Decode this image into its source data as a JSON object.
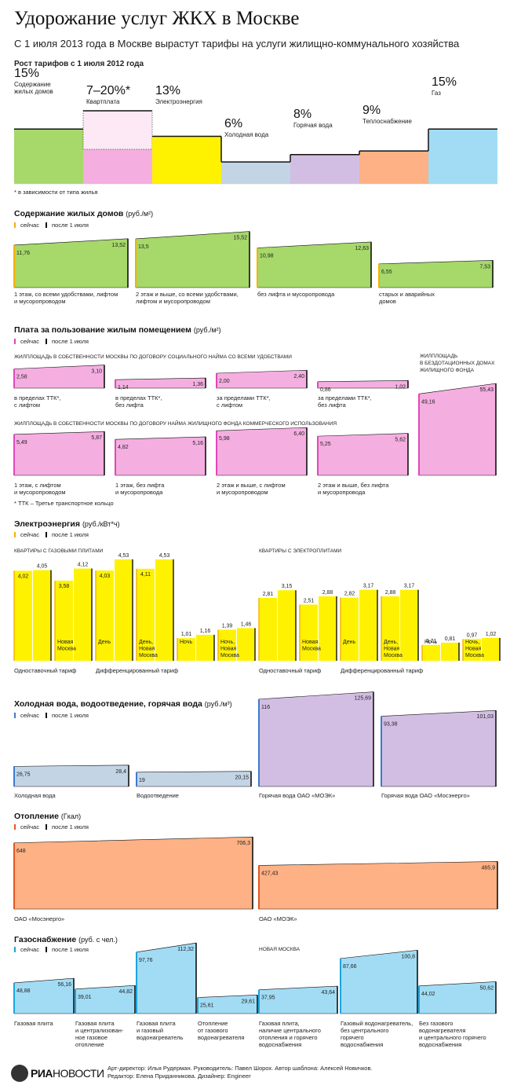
{
  "header": {
    "title": "Удорожание услуг ЖКХ в Москве",
    "subtitle": "С 1 июля 2013 года в Москве вырастут тарифы на услуги жилищно-коммунального хозяйства",
    "summary_label": "Рост тарифов с 1 июля 2012 года",
    "summary_note": "* в зависимости от типа жилья"
  },
  "legend": {
    "now": "сейчас",
    "after": "после 1 июля"
  },
  "colors": {
    "green": "#a6d86a",
    "pink": "#f5aee0",
    "yellow": "#fff200",
    "blue": "#c3d4e4",
    "lilac": "#d3bee3",
    "orange": "#fdb184",
    "cyan": "#a2dcf4",
    "line": "#111111"
  },
  "chart_data": [
    {
      "id": "summary",
      "type": "bar",
      "title": "Рост тарифов с 1 июля 2012 года",
      "categories": [
        "Содержание жилых домов",
        "Квартплата",
        "Электроэнергия",
        "Холодная вода",
        "Горячая вода",
        "Теплоснабжение",
        "Газ"
      ],
      "value_labels": [
        "15%",
        "7–20%*",
        "13%",
        "6%",
        "8%",
        "9%",
        "15%"
      ],
      "values": [
        15,
        20,
        13,
        6,
        8,
        9,
        15
      ],
      "colors": [
        "#a6d86a",
        "#f5aee0",
        "#fff200",
        "#c3d4e4",
        "#d3bee3",
        "#fdb184",
        "#a2dcf4"
      ]
    },
    {
      "id": "housing",
      "type": "area",
      "title": "Содержание жилых домов",
      "unit": "(руб./м²)",
      "series": [
        {
          "now": 11.76,
          "after": 13.52,
          "now_label": "11,76",
          "after_label": "13,52",
          "caption": "1 этаж, со всеми удобствами, лифтом\nи мусоропроводом"
        },
        {
          "now": 13.5,
          "after": 15.52,
          "now_label": "13,5",
          "after_label": "15,52",
          "caption": "2 этаж и выше, со всеми удобствами,\nлифтом и мусоропроводом"
        },
        {
          "now": 10.98,
          "after": 12.63,
          "now_label": "10,98",
          "after_label": "12,63",
          "caption": "без лифта и мусоропровода"
        },
        {
          "now": 6.55,
          "after": 7.53,
          "now_label": "6,55",
          "after_label": "7,53",
          "caption": "старых и аварийных\nдомов"
        }
      ]
    },
    {
      "id": "rent",
      "type": "area",
      "title": "Плата за пользование жилым помещением",
      "unit": "(руб./м²)",
      "group1_label": "ЖИЛПЛОЩАДЬ В СОБСТВЕННОСТИ МОСКВЫ ПО ДОГОВОРУ СОЦИАЛЬНОГО НАЙМА СО ВСЕМИ УДОБСТВАМИ",
      "group2_label": "ЖИЛПЛОЩАДЬ В СОБСТВЕННОСТИ МОСКВЫ ПО ДОГОВОРУ НАЙМА ЖИЛИЩНОГО ФОНДА КОММЕРЧЕСКОГО ИСПОЛЬЗОВАНИЯ",
      "group3_label": "ЖИЛПЛОЩАДЬ\nВ БЕЗДОТАЦИОННЫХ ДОМАХ\nЖИЛИЩНОГО ФОНДА",
      "note": "* ТТК – Третье транспортное кольцо",
      "series": [
        {
          "now": 2.58,
          "after": 3.1,
          "now_label": "2,58",
          "after_label": "3,10",
          "caption": "в пределах ТТК*,\nс лифтом"
        },
        {
          "now": 1.14,
          "after": 1.36,
          "now_label": "1,14",
          "after_label": "1,36",
          "caption": "в пределах ТТК*,\nбез лифта"
        },
        {
          "now": 2.0,
          "after": 2.4,
          "now_label": "2,00",
          "after_label": "2,40",
          "caption": "за пределами ТТК*,\nс лифтом"
        },
        {
          "now": 0.86,
          "after": 1.02,
          "now_label": "0,86",
          "after_label": "1,02",
          "caption": "за пределами ТТК*,\nбез лифта"
        },
        {
          "now": 5.49,
          "after": 5.87,
          "now_label": "5,49",
          "after_label": "5,87",
          "caption": "1 этаж, с лифтом\nи мусоропроводом"
        },
        {
          "now": 4.82,
          "after": 5.16,
          "now_label": "4,82",
          "after_label": "5,16",
          "caption": "1 этаж, без лифта\nи мусоропровода"
        },
        {
          "now": 5.98,
          "after": 6.4,
          "now_label": "5,98",
          "after_label": "6,40",
          "caption": "2 этаж и выше, с лифтом\nи мусоропроводом"
        },
        {
          "now": 5.25,
          "after": 5.62,
          "now_label": "5,25",
          "after_label": "5,62",
          "caption": "2 этаж и выше, без лифта\nи мусоропровода"
        },
        {
          "now": 49.16,
          "after": 55.43,
          "now_label": "49,16",
          "after_label": "55,43",
          "caption": ""
        }
      ]
    },
    {
      "id": "electricity",
      "type": "bar",
      "title": "Электроэнергия",
      "unit": "(руб./кВт*ч)",
      "group1_label": "КВАРТИРЫ С ГАЗОВЫМИ ПЛИТАМИ",
      "group2_label": "КВАРТИРЫ С ЭЛЕКТРОПЛИТАМИ",
      "tariff1_label": "Одноставочный тариф",
      "tariff2_label": "Дифференцированный тариф",
      "series": [
        {
          "now": 4.02,
          "after": 4.05,
          "now_label": "4,02",
          "after_label": "4,05",
          "caption": ""
        },
        {
          "now": 3.58,
          "after": 4.12,
          "now_label": "3,58",
          "after_label": "4,12",
          "caption": "Новая\nМосква"
        },
        {
          "now": 4.03,
          "after": 4.53,
          "now_label": "4,03",
          "after_label": "4,53",
          "caption": "День"
        },
        {
          "now": 4.11,
          "after": 4.53,
          "now_label": "4,11",
          "after_label": "4,53",
          "caption": "День,\nНовая\nМосква"
        },
        {
          "now": 1.01,
          "after": 1.16,
          "now_label": "1,01",
          "after_label": "1,16",
          "caption": "Ночь"
        },
        {
          "now": 1.39,
          "after": 1.46,
          "now_label": "1,39",
          "after_label": "1,46",
          "caption": "Ночь,\nНовая\nМосква"
        },
        {
          "now": 2.81,
          "after": 3.15,
          "now_label": "2,81",
          "after_label": "3,15",
          "caption": ""
        },
        {
          "now": 2.51,
          "after": 2.88,
          "now_label": "2,51",
          "after_label": "2,88",
          "caption": "Новая\nМосква"
        },
        {
          "now": 2.82,
          "after": 3.17,
          "now_label": "2,82",
          "after_label": "3,17",
          "caption": "День"
        },
        {
          "now": 2.88,
          "after": 3.17,
          "now_label": "2,88",
          "after_label": "3,17",
          "caption": "День,\nНовая\nМосква"
        },
        {
          "now": 0.71,
          "after": 0.81,
          "now_label": "0,71",
          "after_label": "0,81",
          "caption": "Ночь"
        },
        {
          "now": 0.97,
          "after": 1.02,
          "now_label": "0,97",
          "after_label": "1,02",
          "caption": "Ночь,\nНовая\nМосква"
        }
      ]
    },
    {
      "id": "water",
      "type": "area",
      "title": "Холодная вода, водоотведение, горячая вода",
      "unit": "(руб./м³)",
      "series": [
        {
          "now": 26.75,
          "after": 28.4,
          "now_label": "26,75",
          "after_label": "28,4",
          "caption": "Холодная вода"
        },
        {
          "now": 19,
          "after": 20.15,
          "now_label": "19",
          "after_label": "20,15",
          "caption": "Водоотведение"
        },
        {
          "now": 116,
          "after": 125.69,
          "now_label": "116",
          "after_label": "125,69",
          "caption": "Горячая вода ОАО «МОЭК»"
        },
        {
          "now": 93.38,
          "after": 101.03,
          "now_label": "93,38",
          "after_label": "101,03",
          "caption": "Горячая вода ОАО «Мосэнерго»"
        }
      ]
    },
    {
      "id": "heating",
      "type": "area",
      "title": "Отопление",
      "unit": "(Гкал)",
      "series": [
        {
          "now": 648,
          "after": 706.3,
          "now_label": "648",
          "after_label": "706,3",
          "caption": "ОАО «Мосэнерго»"
        },
        {
          "now": 427.43,
          "after": 465.9,
          "now_label": "427,43",
          "after_label": "465,9",
          "caption": "ОАО «МОЭК»"
        }
      ]
    },
    {
      "id": "gas",
      "type": "area",
      "title": "Газоснабжение",
      "unit": "(руб. с чел.)",
      "group_label": "НОВАЯ МОСКВА",
      "series": [
        {
          "now": 48.88,
          "after": 56.16,
          "now_label": "48,88",
          "after_label": "56,16",
          "caption": "Газовая плита"
        },
        {
          "now": 39.01,
          "after": 44.82,
          "now_label": "39,01",
          "after_label": "44,82",
          "caption": "Газовая плита\nи централизован-\nное газовое\nотопление"
        },
        {
          "now": 97.76,
          "after": 112.32,
          "now_label": "97,76",
          "after_label": "112,32",
          "caption": "Газовая плита\nи газовый\nводонагреватель"
        },
        {
          "now": 25.61,
          "after": 29.61,
          "now_label": "25,61",
          "after_label": "29,61",
          "caption": "Отопление\nот газового\nводонагревателя"
        },
        {
          "now": 37.95,
          "after": 43.64,
          "now_label": "37,95",
          "after_label": "43,64",
          "caption": "Газовая плита,\nналичие центрального\nотопления и горячего\nводоснабжения"
        },
        {
          "now": 87.66,
          "after": 100.8,
          "now_label": "87,66",
          "after_label": "100,8",
          "caption": "Газовый водонагреватель,\nбез центрального\nгорячего\nводоснабжения"
        },
        {
          "now": 44.02,
          "after": 50.62,
          "now_label": "44,02",
          "after_label": "50,62",
          "caption": "Без газового\nводонагревателя\nи центрального горячего\nводоснабжения"
        }
      ]
    }
  ],
  "footer": {
    "logo_ria": "РИА",
    "logo_novosti": "НОВОСТИ",
    "credits_line1": "Арт-директор: Илья Рудерман. Руководитель: Павел Шорох. Автор шаблона: Алексей Новичков.",
    "credits_line2": "Редактор: Елена Приданникова. Дизайнер: Engineer"
  }
}
